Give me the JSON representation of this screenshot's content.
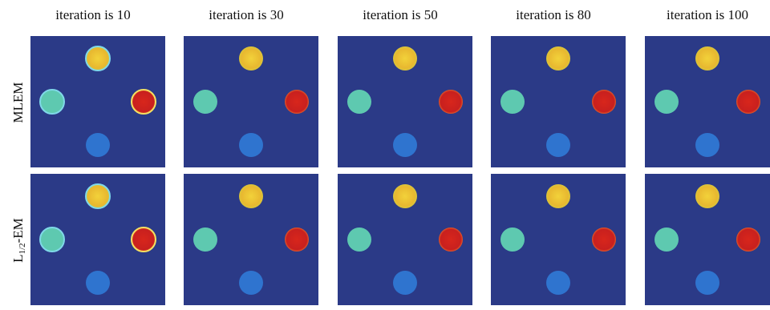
{
  "columns": [
    "iteration is 10",
    "iteration is 30",
    "iteration is 50",
    "iteration is 80",
    "iteration is 100"
  ],
  "rows": [
    {
      "label": "MLEM"
    },
    {
      "label": "L",
      "sub": "1/2",
      "rest": "-EM"
    }
  ]
}
